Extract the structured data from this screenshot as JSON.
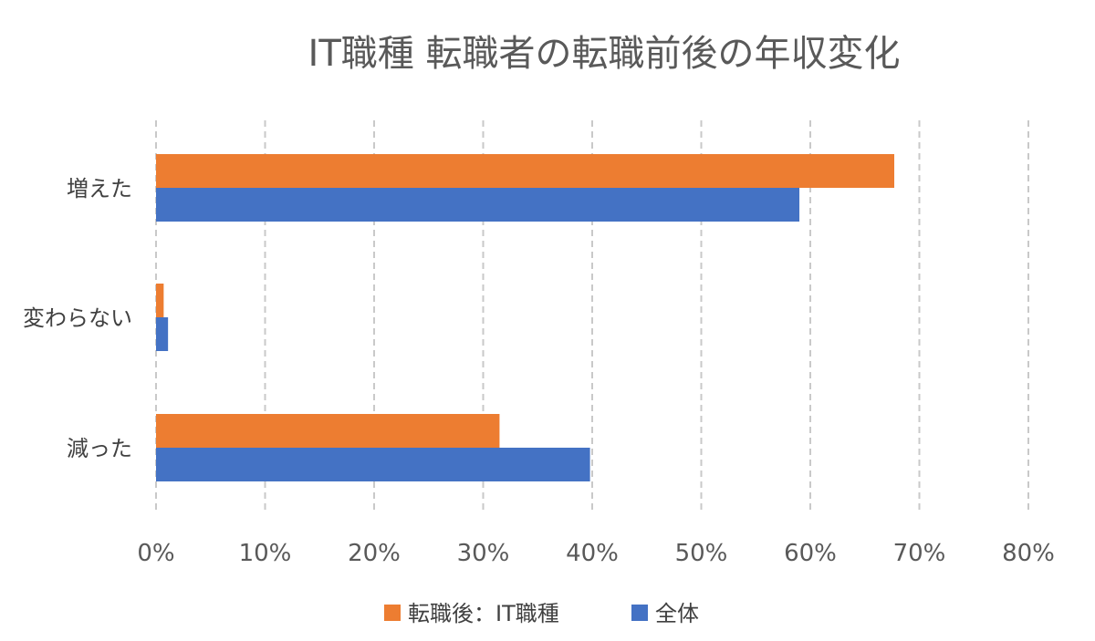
{
  "chart_data": {
    "type": "bar",
    "orientation": "horizontal",
    "title": "IT職種 転職者の転職前後の年収変化",
    "categories": [
      "増えた",
      "変わらない",
      "減った"
    ],
    "series": [
      {
        "name": "転職後：IT職種",
        "color": "#ED7D31",
        "values": [
          67.7,
          0.7,
          31.5
        ]
      },
      {
        "name": "全体",
        "color": "#4472C4",
        "values": [
          59.0,
          1.1,
          39.8
        ]
      }
    ],
    "xlim": [
      0,
      80
    ],
    "xticks": [
      0,
      10,
      20,
      30,
      40,
      50,
      60,
      70,
      80
    ],
    "tick_suffix": "%",
    "grid": true,
    "legend": "bottom"
  }
}
